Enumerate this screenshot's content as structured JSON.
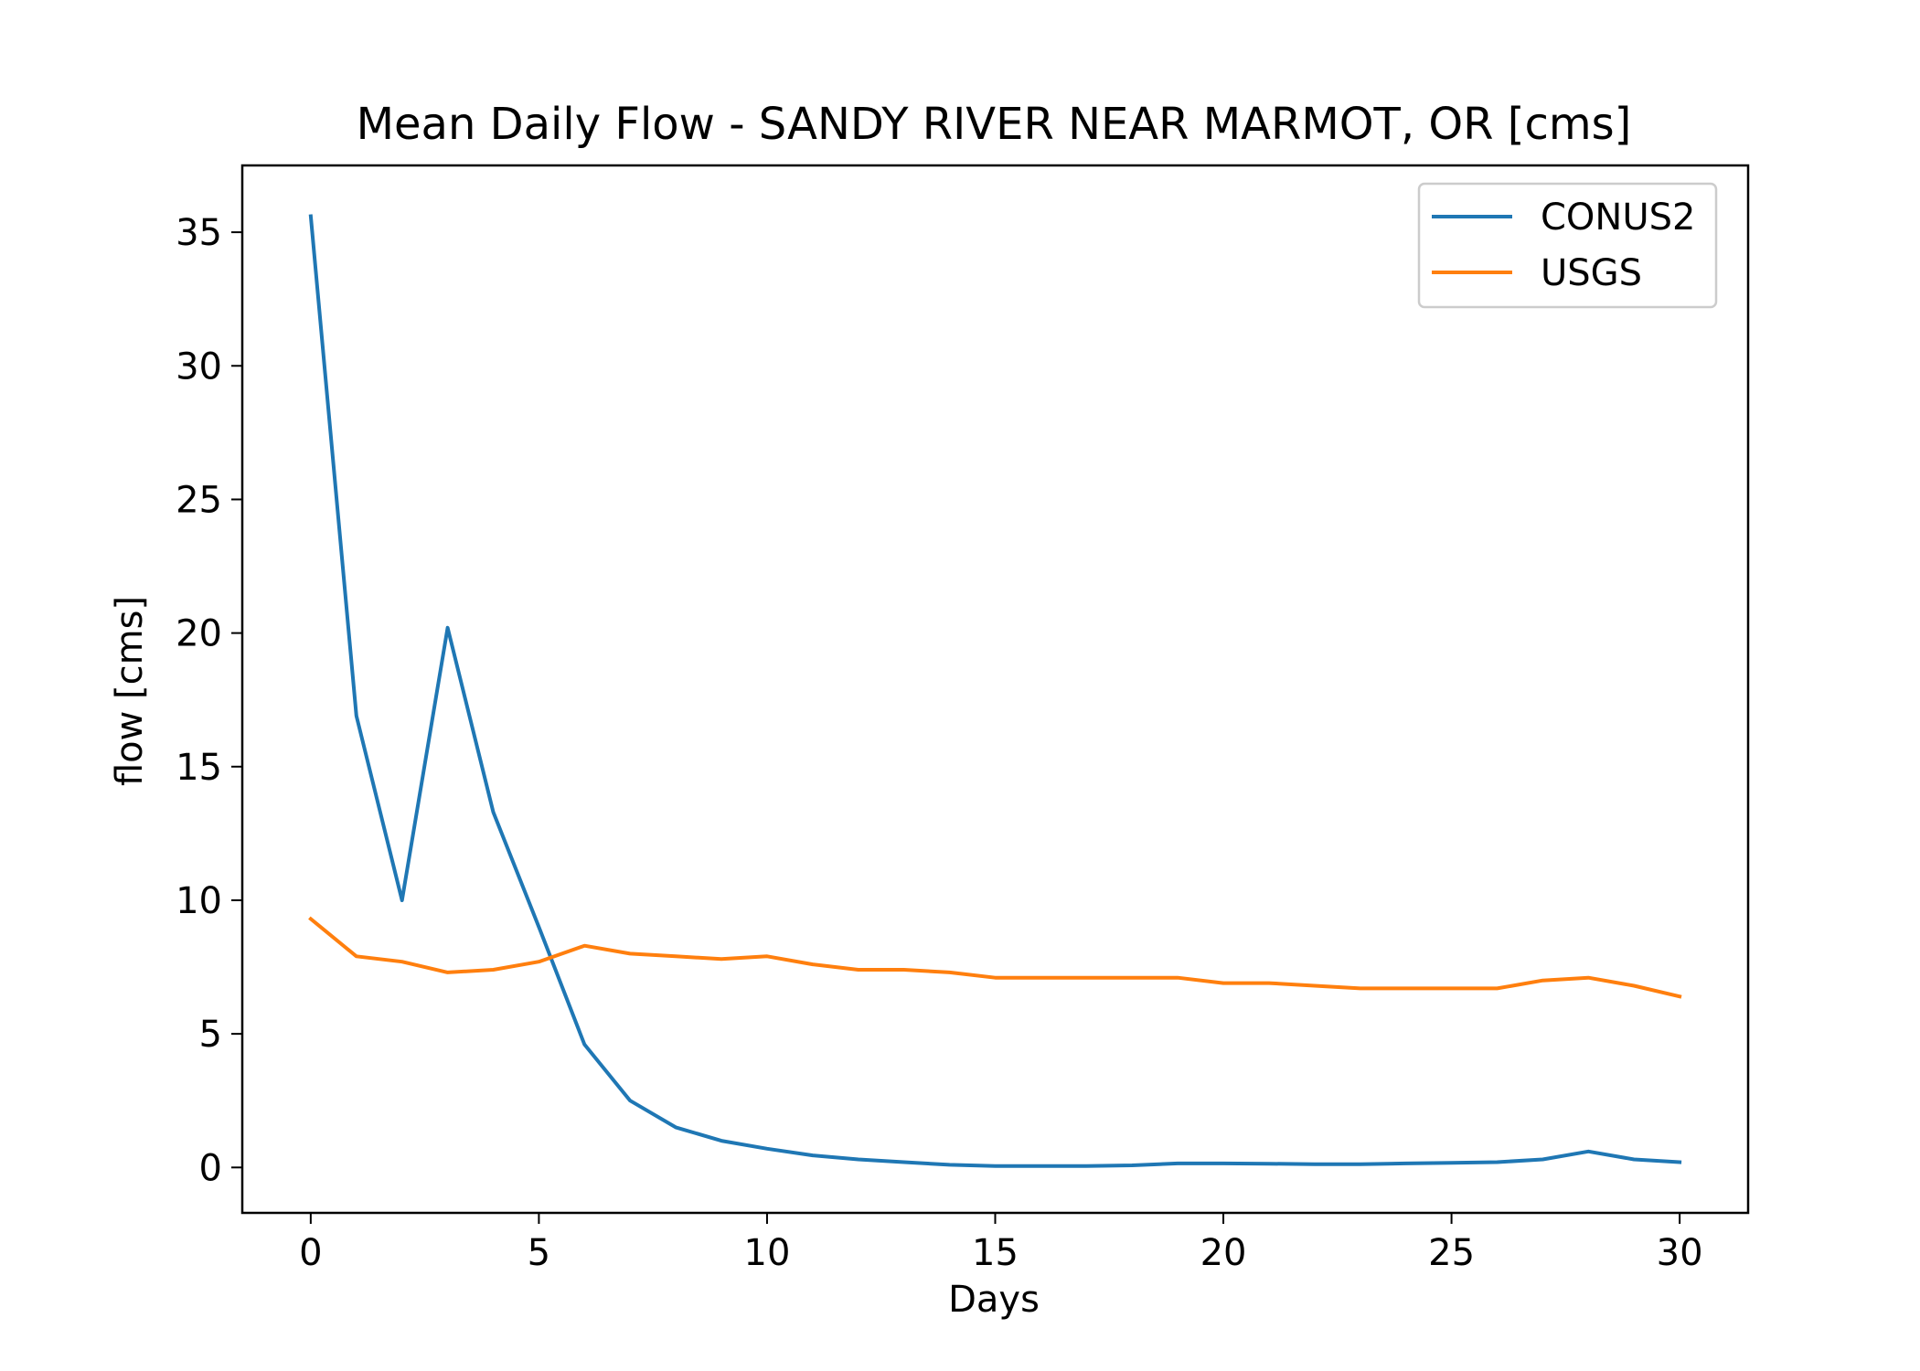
{
  "chart_data": {
    "type": "line",
    "title": "Mean Daily Flow - SANDY RIVER NEAR MARMOT, OR [cms]",
    "xlabel": "Days",
    "ylabel": "flow [cms]",
    "xlim": [
      -1.5,
      31.5
    ],
    "ylim": [
      -1.7,
      37.5
    ],
    "xticks": [
      0,
      5,
      10,
      15,
      20,
      25,
      30
    ],
    "yticks": [
      0,
      5,
      10,
      15,
      20,
      25,
      30,
      35
    ],
    "grid": false,
    "legend_position": "top-right",
    "x": [
      0,
      1,
      2,
      3,
      4,
      5,
      6,
      7,
      8,
      9,
      10,
      11,
      12,
      13,
      14,
      15,
      16,
      17,
      18,
      19,
      20,
      21,
      22,
      23,
      24,
      25,
      26,
      27,
      28,
      29,
      30
    ],
    "series": [
      {
        "name": "CONUS2",
        "color": "#1f77b4",
        "values": [
          35.6,
          16.9,
          10.0,
          20.2,
          13.3,
          9.0,
          4.6,
          2.5,
          1.5,
          1.0,
          0.7,
          0.45,
          0.3,
          0.2,
          0.1,
          0.05,
          0.05,
          0.05,
          0.08,
          0.15,
          0.15,
          0.14,
          0.12,
          0.12,
          0.15,
          0.17,
          0.2,
          0.3,
          0.6,
          0.3,
          0.2
        ]
      },
      {
        "name": "USGS",
        "color": "#ff7f0e",
        "values": [
          9.3,
          7.9,
          7.7,
          7.3,
          7.4,
          7.7,
          8.3,
          8.0,
          7.9,
          7.8,
          7.9,
          7.6,
          7.4,
          7.4,
          7.3,
          7.1,
          7.1,
          7.1,
          7.1,
          7.1,
          6.9,
          6.9,
          6.8,
          6.7,
          6.7,
          6.7,
          6.7,
          7.0,
          7.1,
          6.8,
          6.4
        ]
      }
    ]
  }
}
